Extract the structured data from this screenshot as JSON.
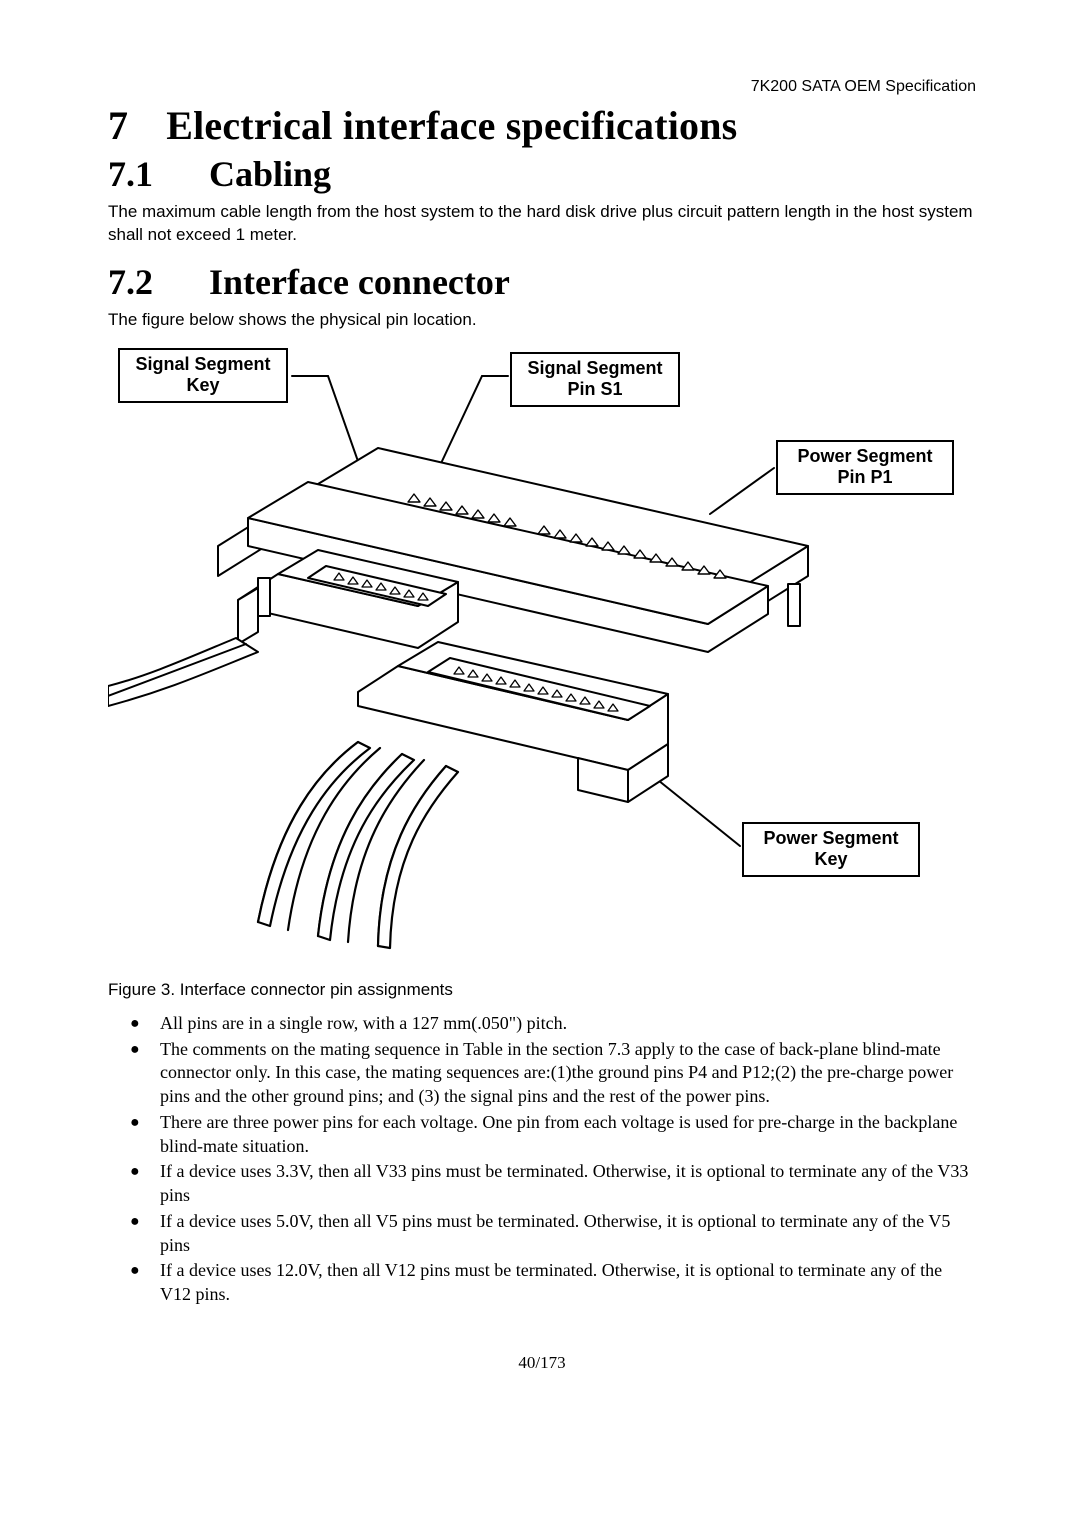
{
  "header": {
    "right": "7K200 SATA OEM Specification"
  },
  "h1": {
    "num": "7",
    "title": "Electrical interface specifications"
  },
  "h2a": {
    "num": "7.1",
    "title": "Cabling"
  },
  "p_cabling": "The maximum cable length from the host system to the hard disk drive plus circuit pattern length in the host system shall not exceed 1 meter.",
  "h2b": {
    "num": "7.2",
    "title": "Interface connector"
  },
  "p_conn": "The figure below shows the physical pin location.",
  "figure": {
    "labels": {
      "sig_key": "Signal Segment\nKey",
      "sig_pin": "Signal Segment\nPin S1",
      "pow_pin": "Power Segment\nPin P1",
      "pow_key": "Power Segment\nKey"
    },
    "colors": {
      "stroke": "#000000",
      "fill": "#ffffff"
    }
  },
  "fig_caption": "Figure 3. Interface connector pin assignments",
  "bullets": [
    "All pins are in a single row, with a 127 mm(.050\") pitch.",
    "The comments on the mating sequence in Table in the section 7.3 apply to the case of back-plane blind-mate connector only. In this case, the mating sequences are:(1)the ground pins P4 and P12;(2) the pre-charge power pins and the other ground pins; and (3) the signal pins and the rest of the power pins.",
    "There are three power pins for each voltage. One pin from each voltage is used for pre-charge in the backplane blind-mate situation.",
    "If a device uses 3.3V, then all V33 pins must be terminated. Otherwise, it is optional to terminate any of the V33 pins",
    "If a device uses 5.0V, then all V5 pins must be terminated. Otherwise, it is optional to terminate any of the V5 pins",
    "If a device uses 12.0V, then all V12 pins must be terminated. Otherwise, it is optional to terminate any of the V12 pins."
  ],
  "page_num": "40/173"
}
